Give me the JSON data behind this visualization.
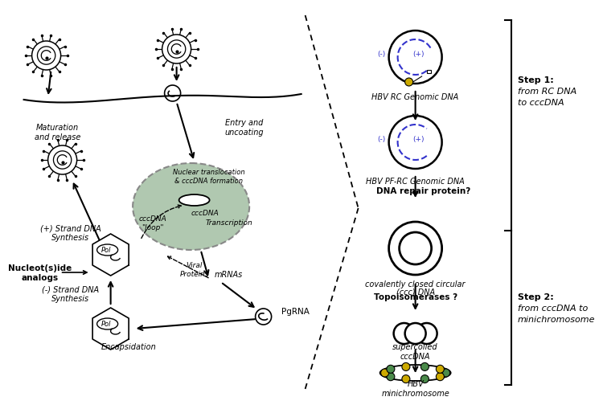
{
  "bg_color": "#ffffff",
  "colors": {
    "black": "#000000",
    "blue": "#3333cc",
    "green": "#4a8a4a",
    "yellow": "#ccaa00",
    "gray_nucleus": "#b0c8b0",
    "nucleus_edge": "#888888"
  },
  "text": {
    "entry_uncoating": "Entry and\nuncoating",
    "nuclear_translocation": "Nuclear translocation\n& cccDNA formation",
    "cccdna_inside": "cccDNA",
    "transcription": "Transcription",
    "mrnas": "mRNAs",
    "viral_proteins": "Viral\nProteins",
    "pgrna": "PgRNA",
    "encapsidation": "Encapsidation",
    "minus_strand": "(-) Strand DNA\nSynthesis",
    "plus_strand": "(+) Strand DNA\nSynthesis",
    "cccdna_loop": "cccDNA\n\"loop\"",
    "maturation_release": "Maturation\nand release",
    "nucleosides": "Nucleot(s)ide\nanalogs",
    "pol": "Pol",
    "hbv_rc": "HBV RC Genomic DNA",
    "hbv_pfrc": "HBV PF-RC Genomic DNA",
    "dna_repair": "DNA repair protein?",
    "cov_closed": "covalently closed circular\n(ccc) DNA",
    "topoisomerases": "Topoisomerases ?",
    "supercoiled": "supercoiled\ncccDNA",
    "hbv_mini": "HBV\nminichromosome",
    "step1_line1": "Step 1:",
    "step1_line2": "from RC DNA",
    "step1_line3": "to cccDNA",
    "step2_line1": "Step 2:",
    "step2_line2": "from cccDNA to",
    "step2_line3": "minichromosome"
  }
}
